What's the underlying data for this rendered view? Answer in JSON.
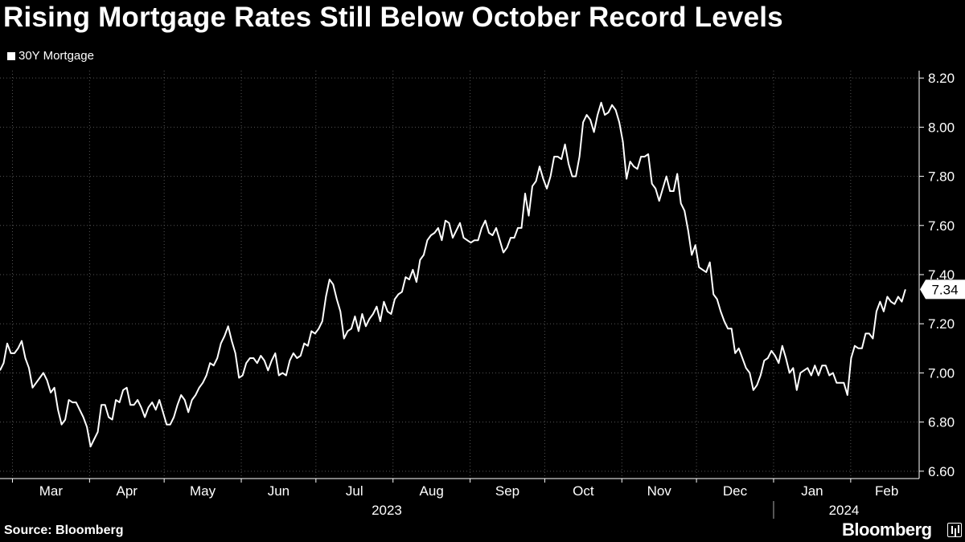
{
  "header": {
    "title": "Rising Mortgage Rates Still Below October Record Levels"
  },
  "legend": {
    "label": "30Y Mortgage"
  },
  "footer": {
    "source": "Source: Bloomberg",
    "brand": "Bloomberg"
  },
  "colors": {
    "background": "#000000",
    "line": "#ffffff",
    "grid": "#555555"
  },
  "chart_data": {
    "type": "line",
    "title": "Rising Mortgage Rates Still Below October Record Levels",
    "xlabel": "",
    "ylabel": "",
    "ylim": [
      6.57,
      8.23
    ],
    "yticks": [
      6.6,
      6.8,
      7.0,
      7.2,
      7.4,
      7.6,
      7.8,
      8.0,
      8.2
    ],
    "ytick_labels": [
      "6.60",
      "6.80",
      "7.00",
      "7.20",
      "7.40",
      "7.60",
      "7.80",
      "8.00",
      "8.20"
    ],
    "month_labels": [
      "Mar",
      "Apr",
      "May",
      "Jun",
      "Jul",
      "Aug",
      "Sep",
      "Oct",
      "Nov",
      "Dec",
      "Jan",
      "Feb"
    ],
    "year_labels": [
      "2023",
      "2024"
    ],
    "grid": true,
    "last_value_label": "7.34",
    "series": [
      {
        "name": "30Y Mortgage",
        "start_date": "2023-02-24",
        "end_date": "2024-02-23",
        "values": [
          7.01,
          7.04,
          7.12,
          7.08,
          7.08,
          7.1,
          7.13,
          7.06,
          7.02,
          6.94,
          6.96,
          6.98,
          7.0,
          6.97,
          6.92,
          6.94,
          6.85,
          6.79,
          6.81,
          6.89,
          6.88,
          6.88,
          6.85,
          6.82,
          6.78,
          6.7,
          6.73,
          6.76,
          6.87,
          6.87,
          6.82,
          6.81,
          6.89,
          6.88,
          6.93,
          6.94,
          6.87,
          6.87,
          6.89,
          6.86,
          6.82,
          6.86,
          6.88,
          6.85,
          6.89,
          6.84,
          6.79,
          6.79,
          6.82,
          6.87,
          6.91,
          6.89,
          6.84,
          6.89,
          6.91,
          6.94,
          6.96,
          6.99,
          7.04,
          7.03,
          7.06,
          7.12,
          7.15,
          7.19,
          7.13,
          7.08,
          6.98,
          6.99,
          7.04,
          7.06,
          7.06,
          7.04,
          7.07,
          7.05,
          7.01,
          7.05,
          7.08,
          6.99,
          7.0,
          6.99,
          7.05,
          7.08,
          7.06,
          7.07,
          7.12,
          7.11,
          7.17,
          7.16,
          7.18,
          7.21,
          7.31,
          7.38,
          7.36,
          7.3,
          7.25,
          7.14,
          7.17,
          7.18,
          7.23,
          7.17,
          7.24,
          7.19,
          7.22,
          7.24,
          7.27,
          7.21,
          7.29,
          7.25,
          7.24,
          7.3,
          7.32,
          7.33,
          7.39,
          7.38,
          7.42,
          7.37,
          7.46,
          7.48,
          7.54,
          7.56,
          7.57,
          7.59,
          7.54,
          7.62,
          7.61,
          7.55,
          7.58,
          7.61,
          7.55,
          7.54,
          7.53,
          7.54,
          7.54,
          7.59,
          7.62,
          7.57,
          7.56,
          7.59,
          7.54,
          7.49,
          7.51,
          7.55,
          7.55,
          7.59,
          7.59,
          7.73,
          7.64,
          7.76,
          7.78,
          7.84,
          7.79,
          7.75,
          7.8,
          7.88,
          7.88,
          7.87,
          7.93,
          7.85,
          7.8,
          7.8,
          7.88,
          8.02,
          8.05,
          8.03,
          7.98,
          8.05,
          8.1,
          8.05,
          8.06,
          8.09,
          8.07,
          8.02,
          7.94,
          7.79,
          7.86,
          7.84,
          7.83,
          7.88,
          7.88,
          7.89,
          7.77,
          7.75,
          7.7,
          7.75,
          7.8,
          7.74,
          7.74,
          7.81,
          7.69,
          7.66,
          7.58,
          7.48,
          7.52,
          7.43,
          7.42,
          7.41,
          7.45,
          7.32,
          7.3,
          7.25,
          7.21,
          7.18,
          7.18,
          7.08,
          7.1,
          7.06,
          7.02,
          7.0,
          6.93,
          6.95,
          6.99,
          7.05,
          7.06,
          7.09,
          7.07,
          7.04,
          7.11,
          7.06,
          7.0,
          7.02,
          6.93,
          7.0,
          7.01,
          7.02,
          6.99,
          7.03,
          6.99,
          7.03,
          7.03,
          6.99,
          7.0,
          6.96,
          6.96,
          6.96,
          6.91,
          7.06,
          7.11,
          7.1,
          7.1,
          7.16,
          7.16,
          7.14,
          7.25,
          7.29,
          7.25,
          7.31,
          7.29,
          7.28,
          7.31,
          7.29,
          7.34
        ]
      }
    ]
  }
}
